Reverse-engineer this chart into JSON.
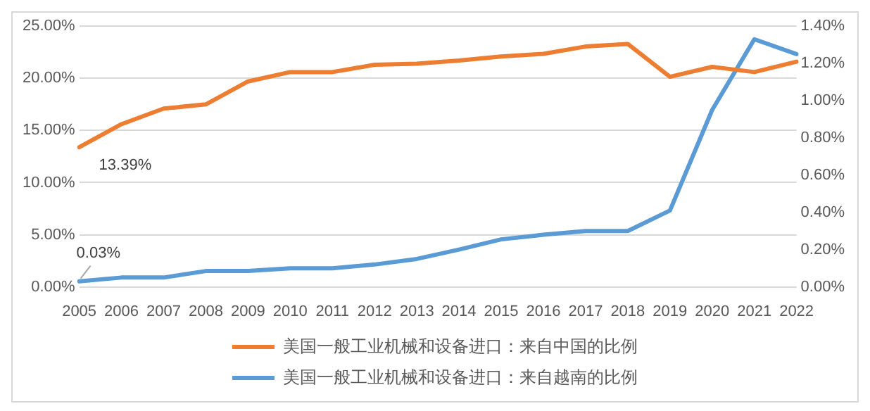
{
  "chart_data": {
    "type": "line",
    "categories": [
      "2005",
      "2006",
      "2007",
      "2008",
      "2009",
      "2010",
      "2011",
      "2012",
      "2013",
      "2014",
      "2015",
      "2016",
      "2017",
      "2018",
      "2019",
      "2020",
      "2021",
      "2022"
    ],
    "series": [
      {
        "name": "美国一般工业机械和设备进口：来自中国的比例",
        "color": "#ed7d31",
        "values": [
          13.39,
          15.6,
          17.1,
          17.5,
          19.7,
          20.6,
          20.6,
          21.3,
          21.4,
          21.7,
          22.1,
          22.35,
          23.05,
          23.3,
          20.15,
          21.1,
          20.6,
          21.6
        ]
      },
      {
        "name": "美国一般工业机械和设备进口：来自越南的比例",
        "color": "#5b9bd5",
        "axis": "y2",
        "values": [
          0.03,
          0.05,
          0.05,
          0.085,
          0.085,
          0.1,
          0.1,
          0.12,
          0.15,
          0.2,
          0.255,
          0.28,
          0.3,
          0.3,
          0.41,
          0.95,
          1.33,
          1.25
        ]
      }
    ],
    "ylim": [
      0,
      25
    ],
    "yticks": [
      {
        "value": 0,
        "label": "0.00%"
      },
      {
        "value": 5,
        "label": "5.00%"
      },
      {
        "value": 10,
        "label": "10.00%"
      },
      {
        "value": 15,
        "label": "15.00%"
      },
      {
        "value": 20,
        "label": "20.00%"
      },
      {
        "value": 25,
        "label": "25.00%"
      }
    ],
    "y2lim": [
      0,
      1.4
    ],
    "y2ticks": [
      {
        "value": 0,
        "label": "0.00%"
      },
      {
        "value": 0.2,
        "label": "0.20%"
      },
      {
        "value": 0.4,
        "label": "0.40%"
      },
      {
        "value": 0.6,
        "label": "0.60%"
      },
      {
        "value": 0.8,
        "label": "0.80%"
      },
      {
        "value": 1,
        "label": "1.00%"
      },
      {
        "value": 1.2,
        "label": "1.20%"
      },
      {
        "value": 1.4,
        "label": "1.40%"
      }
    ],
    "annotations": [
      {
        "text": "13.39%",
        "x": "2005",
        "y": 13.39
      },
      {
        "text": "0.03%",
        "x": "2005",
        "y": 0.03
      }
    ],
    "grid": "y",
    "legend": "bottom",
    "marker": "none",
    "line_style": "solid"
  }
}
